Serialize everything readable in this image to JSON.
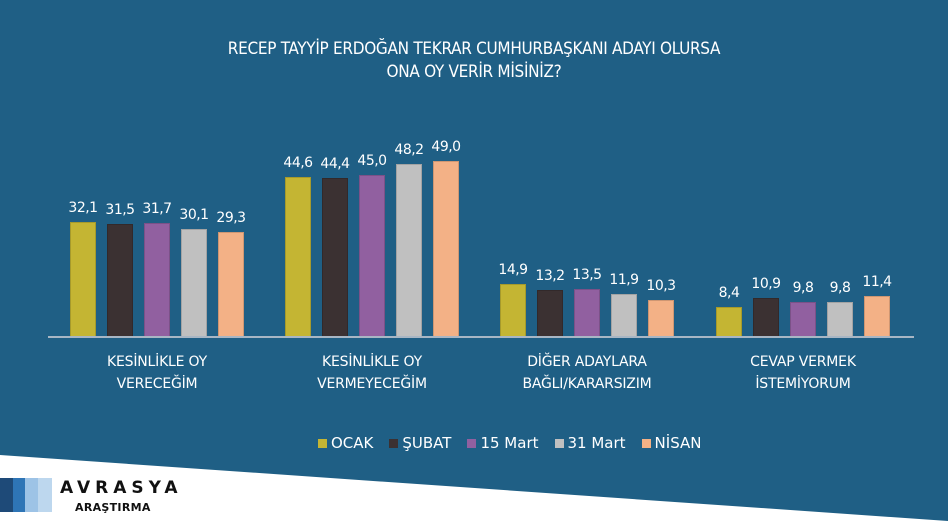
{
  "title": {
    "line1": "RECEP TAYYİP ERDOĞAN TEKRAR CUMHURBAŞKANI ADAYI OLURSA",
    "line2": "ONA OY VERİR MİSİNİZ?"
  },
  "colors": {
    "background": "#1f5f85",
    "baseline": "#a8b6c4",
    "OCAK": "#c4b533",
    "ŞUBAT": "#3b3132",
    "15 Mart": "#9160a0",
    "31 Mart": "#c0c0c0",
    "NİSAN": "#f3b186"
  },
  "categories": [
    {
      "line1": "KESİNLİKLE OY",
      "line2": "VERECEĞİM"
    },
    {
      "line1": "KESİNLİKLE OY",
      "line2": "VERMEYECEĞİM"
    },
    {
      "line1": "DİĞER ADAYLARA",
      "line2": "BAĞLI/KARARSIZIM"
    },
    {
      "line1": "CEVAP VERMEK",
      "line2": "İSTEMİYORUM"
    }
  ],
  "labels": [
    [
      "32,1",
      "31,5",
      "31,7",
      "30,1",
      "29,3"
    ],
    [
      "44,6",
      "44,4",
      "45,0",
      "48,2",
      "49,0"
    ],
    [
      "14,9",
      "13,2",
      "13,5",
      "11,9",
      "10,3"
    ],
    [
      "8,4",
      "10,9",
      "9,8",
      "9,8",
      "11,4"
    ]
  ],
  "legend": [
    {
      "label": "OCAK",
      "color": "#c4b533"
    },
    {
      "label": "ŞUBAT",
      "color": "#3b3132"
    },
    {
      "label": "15 Mart",
      "color": "#9160a0"
    },
    {
      "label": "31 Mart",
      "color": "#c0c0c0"
    },
    {
      "label": "NİSAN",
      "color": "#f3b186"
    }
  ],
  "logo": {
    "brand": "AVRASYA",
    "sub": "ARAŞTIRMA",
    "stripes": [
      "#1e4a78",
      "#2e75b6",
      "#9dc3e6",
      "#bdd7ee"
    ]
  },
  "chart_data": {
    "type": "bar",
    "title": "RECEP TAYYİP ERDOĞAN TEKRAR CUMHURBAŞKANI ADAYI OLURSA ONA OY VERİR MİSİNİZ?",
    "categories": [
      "KESİNLİKLE OY VERECEĞİM",
      "KESİNLİKLE OY VERMEYECEĞİM",
      "DİĞER ADAYLARA BAĞLI/KARARSIZIM",
      "CEVAP VERMEK İSTEMİYORUM"
    ],
    "series": [
      {
        "name": "OCAK",
        "values": [
          32.1,
          44.6,
          14.9,
          8.4
        ]
      },
      {
        "name": "ŞUBAT",
        "values": [
          31.5,
          44.4,
          13.2,
          10.9
        ]
      },
      {
        "name": "15 Mart",
        "values": [
          31.7,
          45.0,
          13.5,
          9.8
        ]
      },
      {
        "name": "31 Mart",
        "values": [
          30.1,
          48.2,
          11.9,
          9.8
        ]
      },
      {
        "name": "NİSAN",
        "values": [
          29.3,
          49.0,
          10.3,
          11.4
        ]
      }
    ],
    "xlabel": "",
    "ylabel": "",
    "ylim": [
      0,
      50
    ],
    "grid": false,
    "legend_position": "bottom",
    "data_labels": true
  }
}
